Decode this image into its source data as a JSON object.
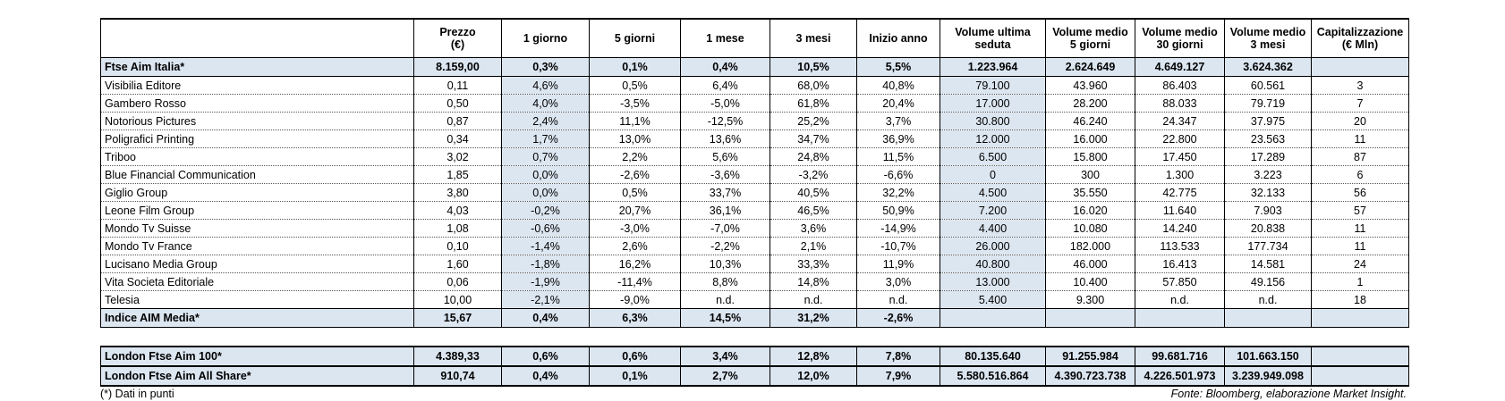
{
  "header": {
    "columns": [
      "",
      "Prezzo\n(€)",
      "1 giorno",
      "5 giorni",
      "1 mese",
      "3 mesi",
      "Inizio anno",
      "Volume ultima\nseduta",
      "Volume medio\n5 giorni",
      "Volume medio\n30 giorni",
      "Volume medio\n3 mesi",
      "Capitalizzazione\n(€ Mln)"
    ]
  },
  "index_row": [
    "Ftse Aim Italia*",
    "8.159,00",
    "0,3%",
    "0,1%",
    "0,4%",
    "10,5%",
    "5,5%",
    "1.223.964",
    "2.624.649",
    "4.649.127",
    "3.624.362"
  ],
  "rows": [
    [
      "Visibilia Editore",
      "0,11",
      "4,6%",
      "0,5%",
      "6,4%",
      "68,0%",
      "40,8%",
      "79.100",
      "43.960",
      "86.403",
      "60.561",
      "3"
    ],
    [
      "Gambero Rosso",
      "0,50",
      "4,0%",
      "-3,5%",
      "-5,0%",
      "61,8%",
      "20,4%",
      "17.000",
      "28.200",
      "88.033",
      "79.719",
      "7"
    ],
    [
      "Notorious Pictures",
      "0,87",
      "2,4%",
      "11,1%",
      "-12,5%",
      "25,2%",
      "3,7%",
      "30.800",
      "46.240",
      "24.347",
      "37.975",
      "20"
    ],
    [
      "Poligrafici Printing",
      "0,34",
      "1,7%",
      "13,0%",
      "13,6%",
      "34,7%",
      "36,9%",
      "12.000",
      "16.000",
      "22.800",
      "23.563",
      "11"
    ],
    [
      "Triboo",
      "3,02",
      "0,7%",
      "2,2%",
      "5,6%",
      "24,8%",
      "11,5%",
      "6.500",
      "15.800",
      "17.450",
      "17.289",
      "87"
    ],
    [
      "Blue Financial Communication",
      "1,85",
      "0,0%",
      "-2,6%",
      "-3,6%",
      "-3,2%",
      "-6,6%",
      "0",
      "300",
      "1.300",
      "3.223",
      "6"
    ],
    [
      "Giglio Group",
      "3,80",
      "0,0%",
      "0,5%",
      "33,7%",
      "40,5%",
      "32,2%",
      "4.500",
      "35.550",
      "42.775",
      "32.133",
      "56"
    ],
    [
      "Leone Film Group",
      "4,03",
      "-0,2%",
      "20,7%",
      "36,1%",
      "46,5%",
      "50,9%",
      "7.200",
      "16.020",
      "11.640",
      "7.903",
      "57"
    ],
    [
      "Mondo Tv Suisse",
      "1,08",
      "-0,6%",
      "-3,0%",
      "-7,0%",
      "3,6%",
      "-14,9%",
      "4.400",
      "10.080",
      "14.240",
      "20.838",
      "11"
    ],
    [
      "Mondo Tv France",
      "0,10",
      "-1,4%",
      "2,6%",
      "-2,2%",
      "2,1%",
      "-10,7%",
      "26.000",
      "182.000",
      "113.533",
      "177.734",
      "11"
    ],
    [
      "Lucisano Media Group",
      "1,60",
      "-1,8%",
      "16,2%",
      "10,3%",
      "33,3%",
      "11,9%",
      "40.800",
      "46.000",
      "16.413",
      "14.581",
      "24"
    ],
    [
      "Vita Societa Editoriale",
      "0,06",
      "-1,9%",
      "-11,4%",
      "8,8%",
      "14,8%",
      "3,0%",
      "13.000",
      "10.400",
      "57.850",
      "49.156",
      "1"
    ],
    [
      "Telesia",
      "10,00",
      "-2,1%",
      "-9,0%",
      "n.d.",
      "n.d.",
      "n.d.",
      "5.400",
      "9.300",
      "n.d.",
      "n.d.",
      "18"
    ]
  ],
  "summary_row": [
    "Indice AIM Media*",
    "15,67",
    "0,4%",
    "6,3%",
    "14,5%",
    "31,2%",
    "-2,6%"
  ],
  "london_rows": [
    [
      "London Ftse Aim 100*",
      "4.389,33",
      "0,6%",
      "0,6%",
      "3,4%",
      "12,8%",
      "7,8%",
      "80.135.640",
      "91.255.984",
      "99.681.716",
      "101.663.150"
    ],
    [
      "London Ftse Aim All Share*",
      "910,74",
      "0,4%",
      "0,1%",
      "2,7%",
      "12,0%",
      "7,9%",
      "5.580.516.864",
      "4.390.723.738",
      "4.226.501.973",
      "3.239.949.098"
    ]
  ],
  "footnote": "(*) Dati in punti",
  "source": "Fonte: Bloomberg, elaborazione Market Insight."
}
